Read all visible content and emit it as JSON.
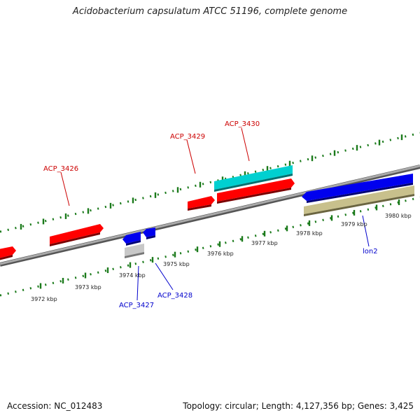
{
  "title": "Acidobacterium capsulatum ATCC 51196, complete genome",
  "accession": {
    "label": "Accession:",
    "value": "NC_012483"
  },
  "stats": {
    "topology_label": "Topology:",
    "topology": "circular",
    "length_label": "Length:",
    "length": "4,127,356 bp",
    "genes_label": "Genes:",
    "genes": "3,425"
  },
  "ruler": {
    "labels": [
      "3972 kbp",
      "3973 kbp",
      "3974 kbp",
      "3975 kbp",
      "3976 kbp",
      "3977 kbp",
      "3978 kbp",
      "3979 kbp",
      "3980 kbp"
    ]
  },
  "genes": [
    {
      "id": "ACP_3426",
      "strand": "+",
      "color": "#ff0000",
      "label_color": "#cc0000"
    },
    {
      "id": "ACP_3429",
      "strand": "+",
      "color": "#ff0000",
      "label_color": "#cc0000"
    },
    {
      "id": "ACP_3430",
      "strand": "+",
      "color": "#ff0000",
      "label_color": "#cc0000"
    },
    {
      "id": "ACP_3427",
      "strand": "-",
      "color": "#0000ee",
      "label_color": "#0000cc"
    },
    {
      "id": "ACP_3428",
      "strand": "-",
      "color": "#0000ee",
      "label_color": "#0000cc"
    },
    {
      "id": "lon2",
      "strand": "-",
      "color": "#0000ee",
      "label_color": "#0000cc"
    }
  ],
  "colors": {
    "forward_cds": "#ff0000",
    "reverse_cds": "#0000ee",
    "rna": "#00cccc",
    "pseudo": "#c0c0c0",
    "other": "#c8c08c",
    "ruler_ticks": "#1a7a1a",
    "backbone": "#8a8a8a"
  }
}
